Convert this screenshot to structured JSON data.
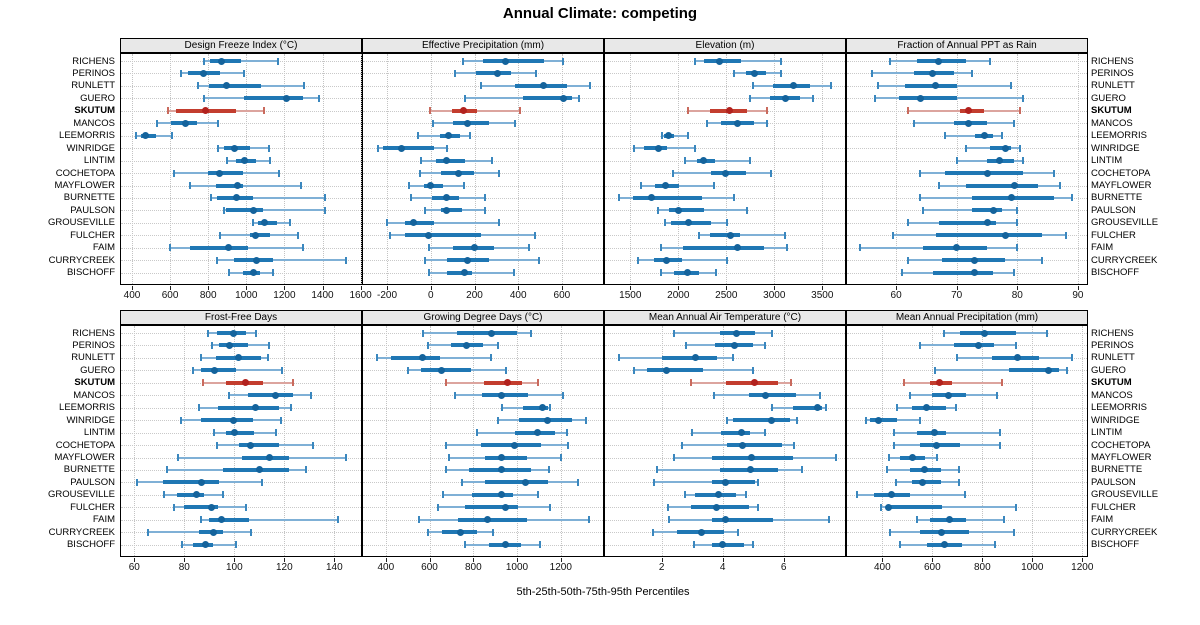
{
  "title": "Annual Climate: competing",
  "footer_label": "5th-25th-50th-75th-95th Percentiles",
  "colors": {
    "series_box": "#1F77B4",
    "series_range": "#7FB0D6",
    "series_cap": "#3A87BE",
    "series_dot": "#14639C",
    "highlight_box": "#C33D2E",
    "highlight_range": "#DCA49E",
    "highlight_cap": "#C96A5D",
    "highlight_dot": "#B2221E",
    "strip_bg": "#E8E8E8",
    "grid": "#C9C9C9",
    "border": "#000000"
  },
  "chart_data": {
    "type": "dotplot-percentile-intervals",
    "percentile_labels": [
      "5th",
      "25th",
      "50th",
      "75th",
      "95th"
    ],
    "highlight": "SKUTUM",
    "stations": [
      "RICHENS",
      "PERINOS",
      "RUNLETT",
      "GUERO",
      "SKUTUM",
      "MANCOS",
      "LEEMORRIS",
      "WINRIDGE",
      "LINTIM",
      "COCHETOPA",
      "MAYFLOWER",
      "BURNETTE",
      "PAULSON",
      "GROUSEVILLE",
      "FULCHER",
      "FAIM",
      "CURRYCREEK",
      "BISCHOFF"
    ],
    "panels": [
      {
        "title": "Design Freeze Index (°C)",
        "grid_row": 0,
        "grid_col": 0,
        "xlim": [
          342,
          1602
        ],
        "ticks": [
          400,
          600,
          800,
          1000,
          1200,
          1400,
          1600
        ],
        "values": [
          [
            775,
            810,
            870,
            975,
            1165
          ],
          [
            655,
            695,
            775,
            860,
            990
          ],
          [
            745,
            805,
            895,
            1075,
            1305
          ],
          [
            780,
            990,
            1210,
            1300,
            1380
          ],
          [
            590,
            630,
            785,
            945,
            1095
          ],
          [
            530,
            605,
            680,
            740,
            850
          ],
          [
            420,
            445,
            470,
            525,
            610
          ],
          [
            850,
            885,
            935,
            1020,
            1120
          ],
          [
            900,
            945,
            990,
            1050,
            1125
          ],
          [
            620,
            800,
            860,
            985,
            1170
          ],
          [
            705,
            840,
            955,
            985,
            1285
          ],
          [
            815,
            845,
            950,
            1035,
            1415
          ],
          [
            880,
            895,
            1035,
            1090,
            1415
          ],
          [
            1035,
            1060,
            1095,
            1160,
            1230
          ],
          [
            860,
            1020,
            1050,
            1125,
            1270
          ],
          [
            600,
            705,
            905,
            1010,
            1295
          ],
          [
            845,
            935,
            1055,
            1140,
            1525
          ],
          [
            910,
            980,
            1035,
            1070,
            1140
          ]
        ]
      },
      {
        "title": "Effective Precipitation (mm)",
        "grid_row": 0,
        "grid_col": 1,
        "xlim": [
          -310,
          788
        ],
        "ticks": [
          -200,
          0,
          200,
          400,
          600
        ],
        "values": [
          [
            145,
            240,
            340,
            520,
            605
          ],
          [
            110,
            205,
            305,
            365,
            480
          ],
          [
            230,
            385,
            515,
            625,
            730
          ],
          [
            155,
            420,
            605,
            645,
            680
          ],
          [
            -5,
            95,
            150,
            210,
            410
          ],
          [
            10,
            100,
            170,
            265,
            385
          ],
          [
            -60,
            40,
            80,
            135,
            180
          ],
          [
            -240,
            -220,
            -135,
            15,
            75
          ],
          [
            -45,
            25,
            70,
            155,
            280
          ],
          [
            -50,
            45,
            125,
            200,
            310
          ],
          [
            -100,
            -30,
            0,
            55,
            150
          ],
          [
            -90,
            5,
            70,
            130,
            250
          ],
          [
            -25,
            45,
            70,
            145,
            250
          ],
          [
            -200,
            -120,
            -80,
            15,
            310
          ],
          [
            -185,
            -120,
            -10,
            230,
            475
          ],
          [
            -10,
            100,
            200,
            290,
            450
          ],
          [
            -25,
            75,
            170,
            265,
            495
          ],
          [
            -10,
            75,
            155,
            190,
            380
          ]
        ]
      },
      {
        "title": "Elevation (m)",
        "grid_row": 0,
        "grid_col": 2,
        "xlim": [
          1236,
          3737
        ],
        "ticks": [
          1500,
          2000,
          2500,
          3000,
          3500
        ],
        "values": [
          [
            2170,
            2265,
            2430,
            2650,
            3065
          ],
          [
            2580,
            2700,
            2795,
            2910,
            3065
          ],
          [
            2780,
            2990,
            3200,
            3370,
            3590
          ],
          [
            2750,
            2955,
            3120,
            3265,
            3405
          ],
          [
            2100,
            2330,
            2535,
            2710,
            2925
          ],
          [
            2295,
            2440,
            2615,
            2790,
            2925
          ],
          [
            1830,
            1855,
            1900,
            1960,
            2100
          ],
          [
            1535,
            1640,
            1795,
            1885,
            2170
          ],
          [
            2065,
            2195,
            2260,
            2385,
            2745
          ],
          [
            1940,
            2340,
            2495,
            2705,
            2965
          ],
          [
            1610,
            1755,
            1870,
            2010,
            2370
          ],
          [
            1385,
            1525,
            1725,
            2245,
            2575
          ],
          [
            1790,
            1905,
            2005,
            2270,
            2715
          ],
          [
            1860,
            1925,
            2105,
            2340,
            2505
          ],
          [
            2220,
            2330,
            2540,
            2640,
            3110
          ],
          [
            1815,
            2045,
            2620,
            2890,
            3130
          ],
          [
            1575,
            1745,
            1880,
            2035,
            2505
          ],
          [
            1820,
            1950,
            2090,
            2220,
            2395
          ]
        ]
      },
      {
        "title": "Fraction of Annual PPT as Rain",
        "grid_row": 0,
        "grid_col": 3,
        "xlim": [
          51.9,
          91.5
        ],
        "ticks": [
          60,
          70,
          80,
          90
        ],
        "values": [
          [
            59,
            63.5,
            67,
            71.5,
            75.5
          ],
          [
            56,
            63,
            66,
            69.5,
            72.5
          ],
          [
            57,
            61.5,
            66.5,
            70,
            79
          ],
          [
            56.5,
            60.5,
            64,
            70,
            81
          ],
          [
            62,
            70.5,
            72,
            74.5,
            80.5
          ],
          [
            63,
            69.5,
            72,
            75,
            79.5
          ],
          [
            68,
            73,
            74.5,
            76,
            77.5
          ],
          [
            71.5,
            75.5,
            78,
            79,
            80.5
          ],
          [
            70,
            75,
            77,
            79.5,
            81
          ],
          [
            64,
            68,
            75,
            81,
            86
          ],
          [
            67,
            71.5,
            79.5,
            83.5,
            87
          ],
          [
            64,
            72.5,
            79,
            86,
            89
          ],
          [
            64.5,
            72.5,
            76,
            77.5,
            80
          ],
          [
            62,
            67,
            75,
            76.5,
            80
          ],
          [
            59.5,
            66.5,
            78,
            84,
            88
          ],
          [
            54,
            64.5,
            70,
            75,
            80
          ],
          [
            62,
            67.5,
            73,
            78,
            84
          ],
          [
            61,
            66,
            73,
            76,
            79.5
          ]
        ]
      },
      {
        "title": "Frost-Free Days",
        "grid_row": 1,
        "grid_col": 0,
        "xlim": [
          54.7,
          150.7
        ],
        "ticks": [
          60,
          80,
          100,
          120,
          140
        ],
        "values": [
          [
            89.5,
            93,
            99.5,
            104.5,
            108.5
          ],
          [
            91,
            94,
            98,
            105.5,
            114
          ],
          [
            86.5,
            92.5,
            101.5,
            110.5,
            113.5
          ],
          [
            83.5,
            86.5,
            92,
            100.5,
            119
          ],
          [
            87.5,
            96.5,
            104.5,
            111.5,
            123.5
          ],
          [
            98,
            105.5,
            116.5,
            123.5,
            130.5
          ],
          [
            86,
            93.5,
            108.5,
            118,
            122.5
          ],
          [
            78.5,
            86.5,
            99.5,
            107.5,
            118.5
          ],
          [
            92,
            96.5,
            100,
            108,
            116.5
          ],
          [
            93,
            102,
            106.5,
            118,
            131.5
          ],
          [
            77.5,
            103,
            114,
            122,
            144.5
          ],
          [
            73,
            95.5,
            110,
            122,
            128.5
          ],
          [
            61,
            71.5,
            87,
            94,
            111
          ],
          [
            72,
            77,
            85,
            88,
            95.5
          ],
          [
            76,
            80,
            91,
            93.5,
            104.5
          ],
          [
            86.5,
            90,
            95,
            106,
            141.5
          ],
          [
            65.5,
            86,
            91.5,
            95.5,
            106.5
          ],
          [
            79,
            83.5,
            88.5,
            91.5,
            100.5
          ]
        ]
      },
      {
        "title": "Growing Degree Days (°C)",
        "grid_row": 1,
        "grid_col": 1,
        "xlim": [
          296,
          1393
        ],
        "ticks": [
          400,
          600,
          800,
          1000,
          1200
        ],
        "values": [
          [
            570,
            725,
            885,
            1000,
            1065
          ],
          [
            595,
            700,
            770,
            845,
            915
          ],
          [
            360,
            425,
            570,
            650,
            880
          ],
          [
            500,
            560,
            655,
            790,
            950
          ],
          [
            675,
            850,
            955,
            1025,
            1095
          ],
          [
            715,
            840,
            930,
            1050,
            1210
          ],
          [
            930,
            1025,
            1115,
            1140,
            1150
          ],
          [
            915,
            1010,
            1140,
            1250,
            1315
          ],
          [
            815,
            990,
            1095,
            1175,
            1230
          ],
          [
            675,
            835,
            990,
            1110,
            1235
          ],
          [
            690,
            855,
            930,
            1045,
            1200
          ],
          [
            675,
            780,
            930,
            1065,
            1145
          ],
          [
            750,
            855,
            1040,
            1140,
            1280
          ],
          [
            660,
            795,
            930,
            980,
            1095
          ],
          [
            640,
            760,
            945,
            1005,
            1150
          ],
          [
            550,
            730,
            865,
            1045,
            1330
          ],
          [
            595,
            655,
            740,
            815,
            890
          ],
          [
            760,
            870,
            945,
            1020,
            1105
          ]
        ]
      },
      {
        "title": "Mean Annual Air Temperature (°C)",
        "grid_row": 1,
        "grid_col": 2,
        "xlim": [
          0.14,
          8.01
        ],
        "ticks": [
          2,
          4,
          6
        ],
        "values": [
          [
            2.4,
            3.9,
            4.45,
            5.05,
            5.6
          ],
          [
            2.8,
            3.75,
            4.4,
            5.0,
            5.4
          ],
          [
            0.6,
            2.0,
            3.1,
            3.8,
            4.35
          ],
          [
            1.1,
            1.5,
            2.15,
            3.35,
            5.0
          ],
          [
            2.95,
            4.1,
            5.05,
            5.8,
            6.25
          ],
          [
            3.7,
            4.85,
            5.4,
            6.4,
            7.2
          ],
          [
            5.6,
            6.3,
            7.1,
            7.25,
            7.4
          ],
          [
            4.15,
            4.35,
            5.6,
            6.2,
            6.45
          ],
          [
            3.0,
            3.95,
            4.6,
            4.9,
            5.4
          ],
          [
            2.65,
            4.15,
            4.65,
            5.95,
            6.35
          ],
          [
            2.4,
            3.65,
            4.95,
            6.3,
            7.7
          ],
          [
            1.85,
            3.9,
            4.9,
            5.8,
            6.6
          ],
          [
            1.75,
            3.65,
            4.1,
            5.05,
            5.15
          ],
          [
            2.75,
            3.1,
            3.85,
            4.45,
            4.75
          ],
          [
            2.2,
            2.95,
            3.8,
            4.85,
            5.15
          ],
          [
            2.25,
            3.65,
            4.1,
            5.65,
            7.5
          ],
          [
            1.7,
            2.5,
            3.3,
            4.05,
            4.5
          ],
          [
            3.05,
            3.65,
            4.0,
            4.7,
            5.0
          ]
        ]
      },
      {
        "title": "Mean Annual Precipitation (mm)",
        "grid_row": 1,
        "grid_col": 3,
        "xlim": [
          259,
          1219
        ],
        "ticks": [
          400,
          600,
          800,
          1000,
          1200
        ],
        "values": [
          [
            645,
            710,
            810,
            935,
            1060
          ],
          [
            550,
            685,
            785,
            845,
            935
          ],
          [
            700,
            840,
            940,
            1025,
            1160
          ],
          [
            610,
            905,
            1065,
            1105,
            1140
          ],
          [
            485,
            590,
            630,
            680,
            880
          ],
          [
            510,
            600,
            665,
            735,
            860
          ],
          [
            460,
            520,
            575,
            655,
            695
          ],
          [
            335,
            350,
            385,
            460,
            550
          ],
          [
            445,
            540,
            610,
            655,
            870
          ],
          [
            445,
            550,
            615,
            710,
            870
          ],
          [
            425,
            470,
            520,
            570,
            620
          ],
          [
            420,
            510,
            570,
            635,
            705
          ],
          [
            455,
            520,
            560,
            635,
            705
          ],
          [
            300,
            365,
            435,
            510,
            730
          ],
          [
            395,
            415,
            425,
            640,
            935
          ],
          [
            540,
            590,
            670,
            735,
            885
          ],
          [
            430,
            550,
            635,
            745,
            925
          ],
          [
            470,
            580,
            650,
            720,
            850
          ]
        ]
      }
    ]
  }
}
